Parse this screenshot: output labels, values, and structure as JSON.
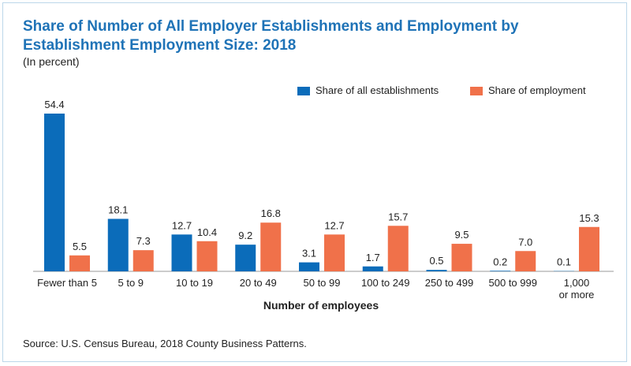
{
  "title": "Share of Number of All Employer Establishments and Employment by Establishment Employment Size: 2018",
  "subtitle": "(In percent)",
  "source": "Source: U.S. Census Bureau, 2018 County Business Patterns.",
  "colors": {
    "title": "#1f73b7",
    "establishments": "#0b6cba",
    "employment": "#f0714a"
  },
  "chart_data": {
    "type": "bar",
    "title": "Share of Number of All Employer Establishments and Employment by Establishment Employment Size: 2018",
    "subtitle": "(In percent)",
    "xlabel": "Number of employees",
    "ylabel": "",
    "ylim": [
      0,
      54.4
    ],
    "grid": false,
    "legend_position": "top-right",
    "categories": [
      "Fewer than 5",
      "5 to 9",
      "10 to 19",
      "20 to 49",
      "50 to 99",
      "100 to 249",
      "250 to 499",
      "500 to 999",
      [
        "1,000",
        "or more"
      ]
    ],
    "series": [
      {
        "name": "Share of all establishments",
        "color": "#0b6cba",
        "values": [
          54.4,
          18.1,
          12.7,
          9.2,
          3.1,
          1.7,
          0.5,
          0.2,
          0.1
        ],
        "labels": [
          "54.4",
          "18.1",
          "12.7",
          "9.2",
          "3.1",
          "1.7",
          "0.5",
          "0.2",
          "0.1"
        ]
      },
      {
        "name": "Share of employment",
        "color": "#f0714a",
        "values": [
          5.5,
          7.3,
          10.4,
          16.8,
          12.7,
          15.7,
          9.5,
          7.0,
          15.3
        ],
        "labels": [
          "5.5",
          "7.3",
          "10.4",
          "16.8",
          "12.7",
          "15.7",
          "9.5",
          "7.0",
          "15.3"
        ]
      }
    ]
  }
}
